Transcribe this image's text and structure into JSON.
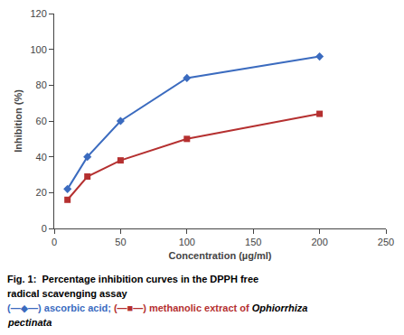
{
  "chart_data": {
    "type": "line",
    "title": "Fig. 1:  Percentage inhibition curves in the DPPH free radical scavenging assay",
    "annotations": [
      {
        "text": "(—◆—) ascorbic acid;",
        "color": "#3B6BBF"
      },
      {
        "text": "(—■—) methanolic extract of",
        "color": "#B53030"
      },
      {
        "text": "Ophiorrhiza pectinata",
        "font_style": "italic"
      }
    ],
    "x_label": "Concentration (µg/ml)",
    "y_label": "Inhibition (%)",
    "x": [
      10,
      25,
      50,
      100,
      200
    ],
    "series": [
      {
        "color": "#3B6BBF",
        "marker": "diamond",
        "values": [
          22,
          40,
          60,
          84,
          96
        ]
      },
      {
        "color": "#B53030",
        "marker": "square",
        "values": [
          16,
          29,
          38,
          50,
          64
        ]
      }
    ],
    "xlim": [
      0,
      250
    ],
    "ylim": [
      0,
      120
    ],
    "xticks": [
      0,
      50,
      100,
      150,
      200,
      250
    ],
    "yticks": [
      0,
      20,
      40,
      60,
      80,
      100,
      120
    ],
    "grid": false
  }
}
